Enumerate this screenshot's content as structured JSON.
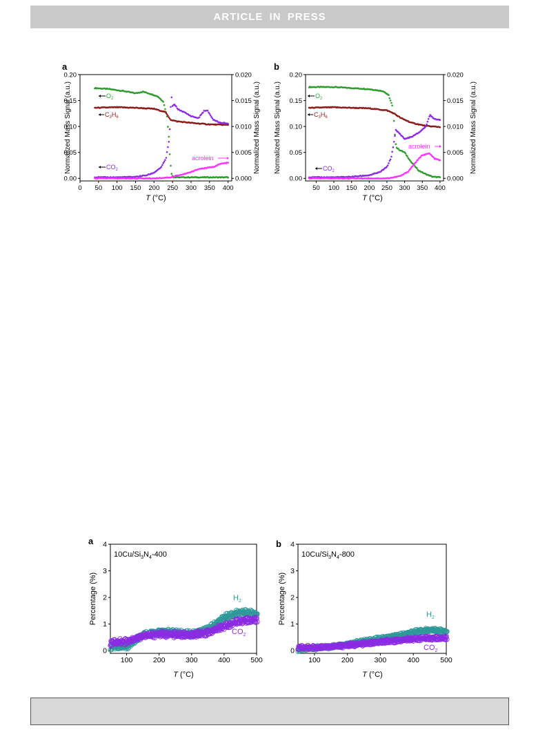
{
  "header": {
    "banner": "ARTICLE IN PRESS"
  },
  "figure1": {
    "panels": [
      {
        "label": "a",
        "transition": 245
      },
      {
        "label": "b",
        "transition": 270
      }
    ]
  },
  "figure2": {
    "panels": [
      {
        "label": "a",
        "sample_main": "10Cu/Si",
        "s1": "3",
        "sample_mid": "N",
        "s2": "4",
        "sample_end": "-400"
      },
      {
        "label": "b",
        "sample_main": "10Cu/Si",
        "s1": "3",
        "sample_mid": "N",
        "s2": "4",
        "sample_end": "-800"
      }
    ]
  },
  "chart_data": [
    {
      "type": "scatter",
      "panel": "a",
      "xlabel_italic": "T",
      "xlabel_unit": " (°C)",
      "ylabel": "Normalized Mass Signal (a.u.)",
      "y2label": "Normalized Mass Signal (a.u.)",
      "xlim": [
        0,
        410
      ],
      "ylim": [
        -0.005,
        0.2
      ],
      "y2lim": [
        -0.0005,
        0.02
      ],
      "xticks": [
        0,
        50,
        100,
        150,
        200,
        250,
        300,
        350,
        400
      ],
      "yticks": [
        "0.00",
        "0.05",
        "0.10",
        "0.15",
        "0.20"
      ],
      "y2ticks": [
        "0.000",
        "0.005",
        "0.010",
        "0.015",
        "0.020"
      ],
      "colors": {
        "O2": "#2e9a2e",
        "C3H6": "#8b1a1a",
        "CO2": "#8b2be2",
        "acrolein": "#ff33ff"
      },
      "labels": {
        "O2_main": "O",
        "O2_sub": "2",
        "C3H6_a": "C",
        "C3H6_s1": "3",
        "C3H6_b": "H",
        "C3H6_s2": "6",
        "CO2_main": "CO",
        "CO2_sub": "2",
        "acrolein": "acrolein"
      },
      "series": [
        {
          "name": "O2",
          "axis": "left",
          "points": [
            [
              40,
              0.174
            ],
            [
              80,
              0.172
            ],
            [
              120,
              0.168
            ],
            [
              150,
              0.164
            ],
            [
              170,
              0.167
            ],
            [
              190,
              0.163
            ],
            [
              210,
              0.158
            ],
            [
              225,
              0.148
            ],
            [
              235,
              0.12
            ],
            [
              240,
              0.08
            ],
            [
              243,
              0.04
            ],
            [
              247,
              0.01
            ],
            [
              252,
              0.002
            ],
            [
              300,
              0.002
            ],
            [
              400,
              0.002
            ]
          ]
        },
        {
          "name": "C3H6",
          "axis": "left",
          "points": [
            [
              40,
              0.136
            ],
            [
              100,
              0.137
            ],
            [
              150,
              0.136
            ],
            [
              200,
              0.134
            ],
            [
              230,
              0.128
            ],
            [
              245,
              0.113
            ],
            [
              260,
              0.11
            ],
            [
              300,
              0.107
            ],
            [
              350,
              0.104
            ],
            [
              400,
              0.103
            ]
          ]
        },
        {
          "name": "CO2",
          "axis": "left",
          "points": [
            [
              40,
              0.002
            ],
            [
              100,
              0.002
            ],
            [
              150,
              0.003
            ],
            [
              180,
              0.006
            ],
            [
              200,
              0.011
            ],
            [
              220,
              0.022
            ],
            [
              232,
              0.038
            ],
            [
              240,
              0.07
            ],
            [
              244,
              0.11
            ],
            [
              246,
              0.165
            ],
            [
              250,
              0.14
            ],
            [
              256,
              0.142
            ],
            [
              265,
              0.133
            ],
            [
              280,
              0.128
            ],
            [
              300,
              0.12
            ],
            [
              320,
              0.116
            ],
            [
              335,
              0.13
            ],
            [
              345,
              0.13
            ],
            [
              360,
              0.113
            ],
            [
              380,
              0.107
            ],
            [
              400,
              0.106
            ]
          ]
        },
        {
          "name": "acrolein",
          "axis": "right",
          "points": [
            [
              40,
              0.0
            ],
            [
              200,
              0.0
            ],
            [
              245,
              0.0002
            ],
            [
              260,
              0.0005
            ],
            [
              280,
              0.0008
            ],
            [
              300,
              0.0012
            ],
            [
              320,
              0.0018
            ],
            [
              340,
              0.002
            ],
            [
              360,
              0.0022
            ],
            [
              380,
              0.0028
            ],
            [
              400,
              0.003
            ]
          ]
        }
      ]
    },
    {
      "type": "scatter",
      "panel": "b",
      "xlabel_italic": "T",
      "xlabel_unit": " (°C)",
      "ylabel": "Normalized Mass Signal (a.u.)",
      "y2label": "Normalized Mass Signal (a.u.)",
      "xlim": [
        20,
        410
      ],
      "ylim": [
        -0.005,
        0.2
      ],
      "y2lim": [
        -0.0005,
        0.02
      ],
      "xticks": [
        50,
        100,
        150,
        200,
        250,
        300,
        350,
        400
      ],
      "yticks": [
        "0.00",
        "0.05",
        "0.10",
        "0.15",
        "0.20"
      ],
      "y2ticks": [
        "0.000",
        "0.005",
        "0.010",
        "0.015",
        "0.020"
      ],
      "colors": {
        "O2": "#2e9a2e",
        "C3H6": "#8b1a1a",
        "CO2": "#8b2be2",
        "acrolein": "#ff33ff"
      },
      "labels": {
        "O2_main": "O",
        "O2_sub": "2",
        "C3H6_a": "C",
        "C3H6_s1": "3",
        "C3H6_b": "H",
        "C3H6_s2": "6",
        "CO2_main": "CO",
        "CO2_sub": "2",
        "acrolein": "acrolein"
      },
      "series": [
        {
          "name": "O2",
          "axis": "left",
          "points": [
            [
              30,
              0.176
            ],
            [
              100,
              0.176
            ],
            [
              150,
              0.174
            ],
            [
              200,
              0.172
            ],
            [
              240,
              0.168
            ],
            [
              255,
              0.16
            ],
            [
              265,
              0.14
            ],
            [
              270,
              0.11
            ],
            [
              273,
              0.08
            ],
            [
              276,
              0.06
            ],
            [
              285,
              0.055
            ],
            [
              300,
              0.05
            ],
            [
              320,
              0.03
            ],
            [
              340,
              0.015
            ],
            [
              360,
              0.008
            ],
            [
              380,
              0.003
            ],
            [
              400,
              0.002
            ]
          ]
        },
        {
          "name": "C3H6",
          "axis": "left",
          "points": [
            [
              30,
              0.136
            ],
            [
              100,
              0.137
            ],
            [
              150,
              0.136
            ],
            [
              200,
              0.135
            ],
            [
              250,
              0.131
            ],
            [
              270,
              0.125
            ],
            [
              290,
              0.116
            ],
            [
              320,
              0.107
            ],
            [
              360,
              0.101
            ],
            [
              400,
              0.099
            ]
          ]
        },
        {
          "name": "CO2",
          "axis": "left",
          "points": [
            [
              30,
              0.002
            ],
            [
              100,
              0.002
            ],
            [
              150,
              0.003
            ],
            [
              200,
              0.006
            ],
            [
              230,
              0.012
            ],
            [
              250,
              0.022
            ],
            [
              262,
              0.04
            ],
            [
              270,
              0.07
            ],
            [
              275,
              0.093
            ],
            [
              285,
              0.087
            ],
            [
              300,
              0.076
            ],
            [
              320,
              0.08
            ],
            [
              340,
              0.088
            ],
            [
              360,
              0.1
            ],
            [
              372,
              0.123
            ],
            [
              380,
              0.116
            ],
            [
              400,
              0.112
            ]
          ]
        },
        {
          "name": "acrolein",
          "axis": "right",
          "points": [
            [
              30,
              0.0
            ],
            [
              250,
              0.0
            ],
            [
              270,
              0.0002
            ],
            [
              290,
              0.0005
            ],
            [
              310,
              0.0013
            ],
            [
              330,
              0.003
            ],
            [
              350,
              0.0045
            ],
            [
              370,
              0.0048
            ],
            [
              385,
              0.0038
            ],
            [
              400,
              0.0035
            ]
          ]
        }
      ]
    },
    {
      "type": "scatter",
      "panel": "a",
      "xlabel_italic": "T",
      "xlabel_unit": " (°C)",
      "ylabel": "Percentage (%)",
      "xlim": [
        50,
        500
      ],
      "ylim": [
        -0.1,
        4
      ],
      "xticks": [
        100,
        200,
        300,
        400,
        500
      ],
      "yticks": [
        0,
        1,
        2,
        3,
        4
      ],
      "colors": {
        "H2": "#2e9999",
        "CO2": "#8b2be2"
      },
      "labels": {
        "H2_main": "H",
        "H2_sub": "2",
        "CO2_main": "CO",
        "CO2_sub": "2"
      },
      "series": [
        {
          "name": "H2",
          "points": [
            [
              50,
              0.15
            ],
            [
              100,
              0.15
            ],
            [
              150,
              0.6
            ],
            [
              200,
              0.72
            ],
            [
              250,
              0.68
            ],
            [
              300,
              0.62
            ],
            [
              350,
              0.8
            ],
            [
              400,
              1.25
            ],
            [
              450,
              1.45
            ],
            [
              500,
              1.38
            ]
          ]
        },
        {
          "name": "CO2",
          "points": [
            [
              50,
              0.3
            ],
            [
              100,
              0.35
            ],
            [
              150,
              0.55
            ],
            [
              200,
              0.62
            ],
            [
              250,
              0.6
            ],
            [
              300,
              0.58
            ],
            [
              350,
              0.68
            ],
            [
              400,
              0.92
            ],
            [
              450,
              1.12
            ],
            [
              500,
              1.15
            ]
          ]
        }
      ]
    },
    {
      "type": "scatter",
      "panel": "b",
      "xlabel_italic": "T",
      "xlabel_unit": " (°C)",
      "ylabel": "Percentage (%)",
      "xlim": [
        50,
        500
      ],
      "ylim": [
        -0.1,
        4
      ],
      "xticks": [
        100,
        200,
        300,
        400,
        500
      ],
      "yticks": [
        0,
        1,
        2,
        3,
        4
      ],
      "colors": {
        "H2": "#2e9999",
        "CO2": "#8b2be2"
      },
      "labels": {
        "H2_main": "H",
        "H2_sub": "2",
        "CO2_main": "CO",
        "CO2_sub": "2"
      },
      "series": [
        {
          "name": "H2",
          "points": [
            [
              50,
              0.05
            ],
            [
              100,
              0.1
            ],
            [
              150,
              0.15
            ],
            [
              200,
              0.25
            ],
            [
              250,
              0.35
            ],
            [
              300,
              0.45
            ],
            [
              350,
              0.55
            ],
            [
              400,
              0.7
            ],
            [
              450,
              0.78
            ],
            [
              500,
              0.72
            ]
          ]
        },
        {
          "name": "CO2",
          "points": [
            [
              50,
              0.12
            ],
            [
              100,
              0.12
            ],
            [
              150,
              0.15
            ],
            [
              200,
              0.2
            ],
            [
              250,
              0.26
            ],
            [
              300,
              0.32
            ],
            [
              350,
              0.38
            ],
            [
              400,
              0.44
            ],
            [
              450,
              0.47
            ],
            [
              500,
              0.47
            ]
          ]
        }
      ]
    }
  ]
}
